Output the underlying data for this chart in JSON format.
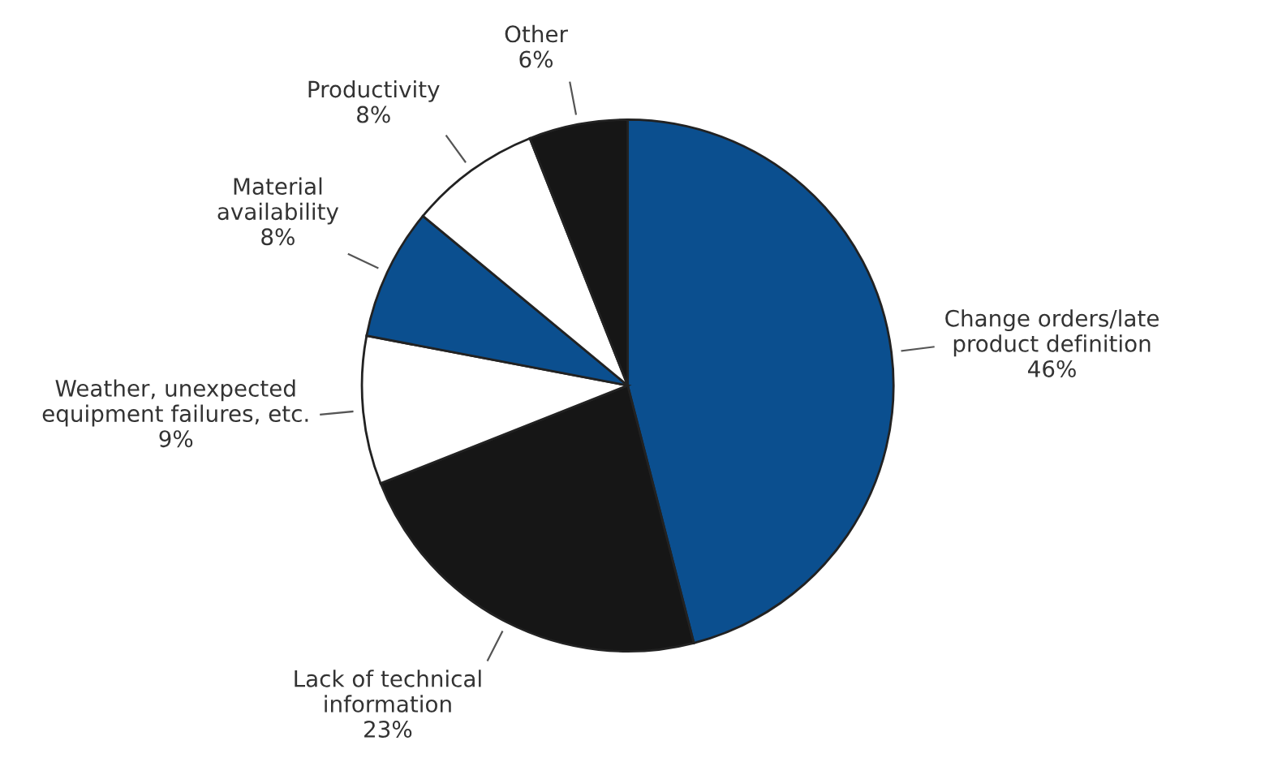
{
  "chart_data": {
    "type": "pie",
    "categories": [
      "Change orders/late\nproduct definition",
      "Lack of technical\ninformation",
      "Weather, unexpected\nequipment failures, etc.",
      "Material\navailability",
      "Productivity",
      "Other"
    ],
    "values": [
      46,
      23,
      9,
      8,
      8,
      6
    ],
    "value_labels": [
      "46%",
      "23%",
      "9%",
      "8%",
      "8%",
      "6%"
    ],
    "colors": [
      "#0b4f8f",
      "#161616",
      "#ffffff",
      "#0b4f8f",
      "#ffffff",
      "#161616"
    ],
    "legend": false
  }
}
